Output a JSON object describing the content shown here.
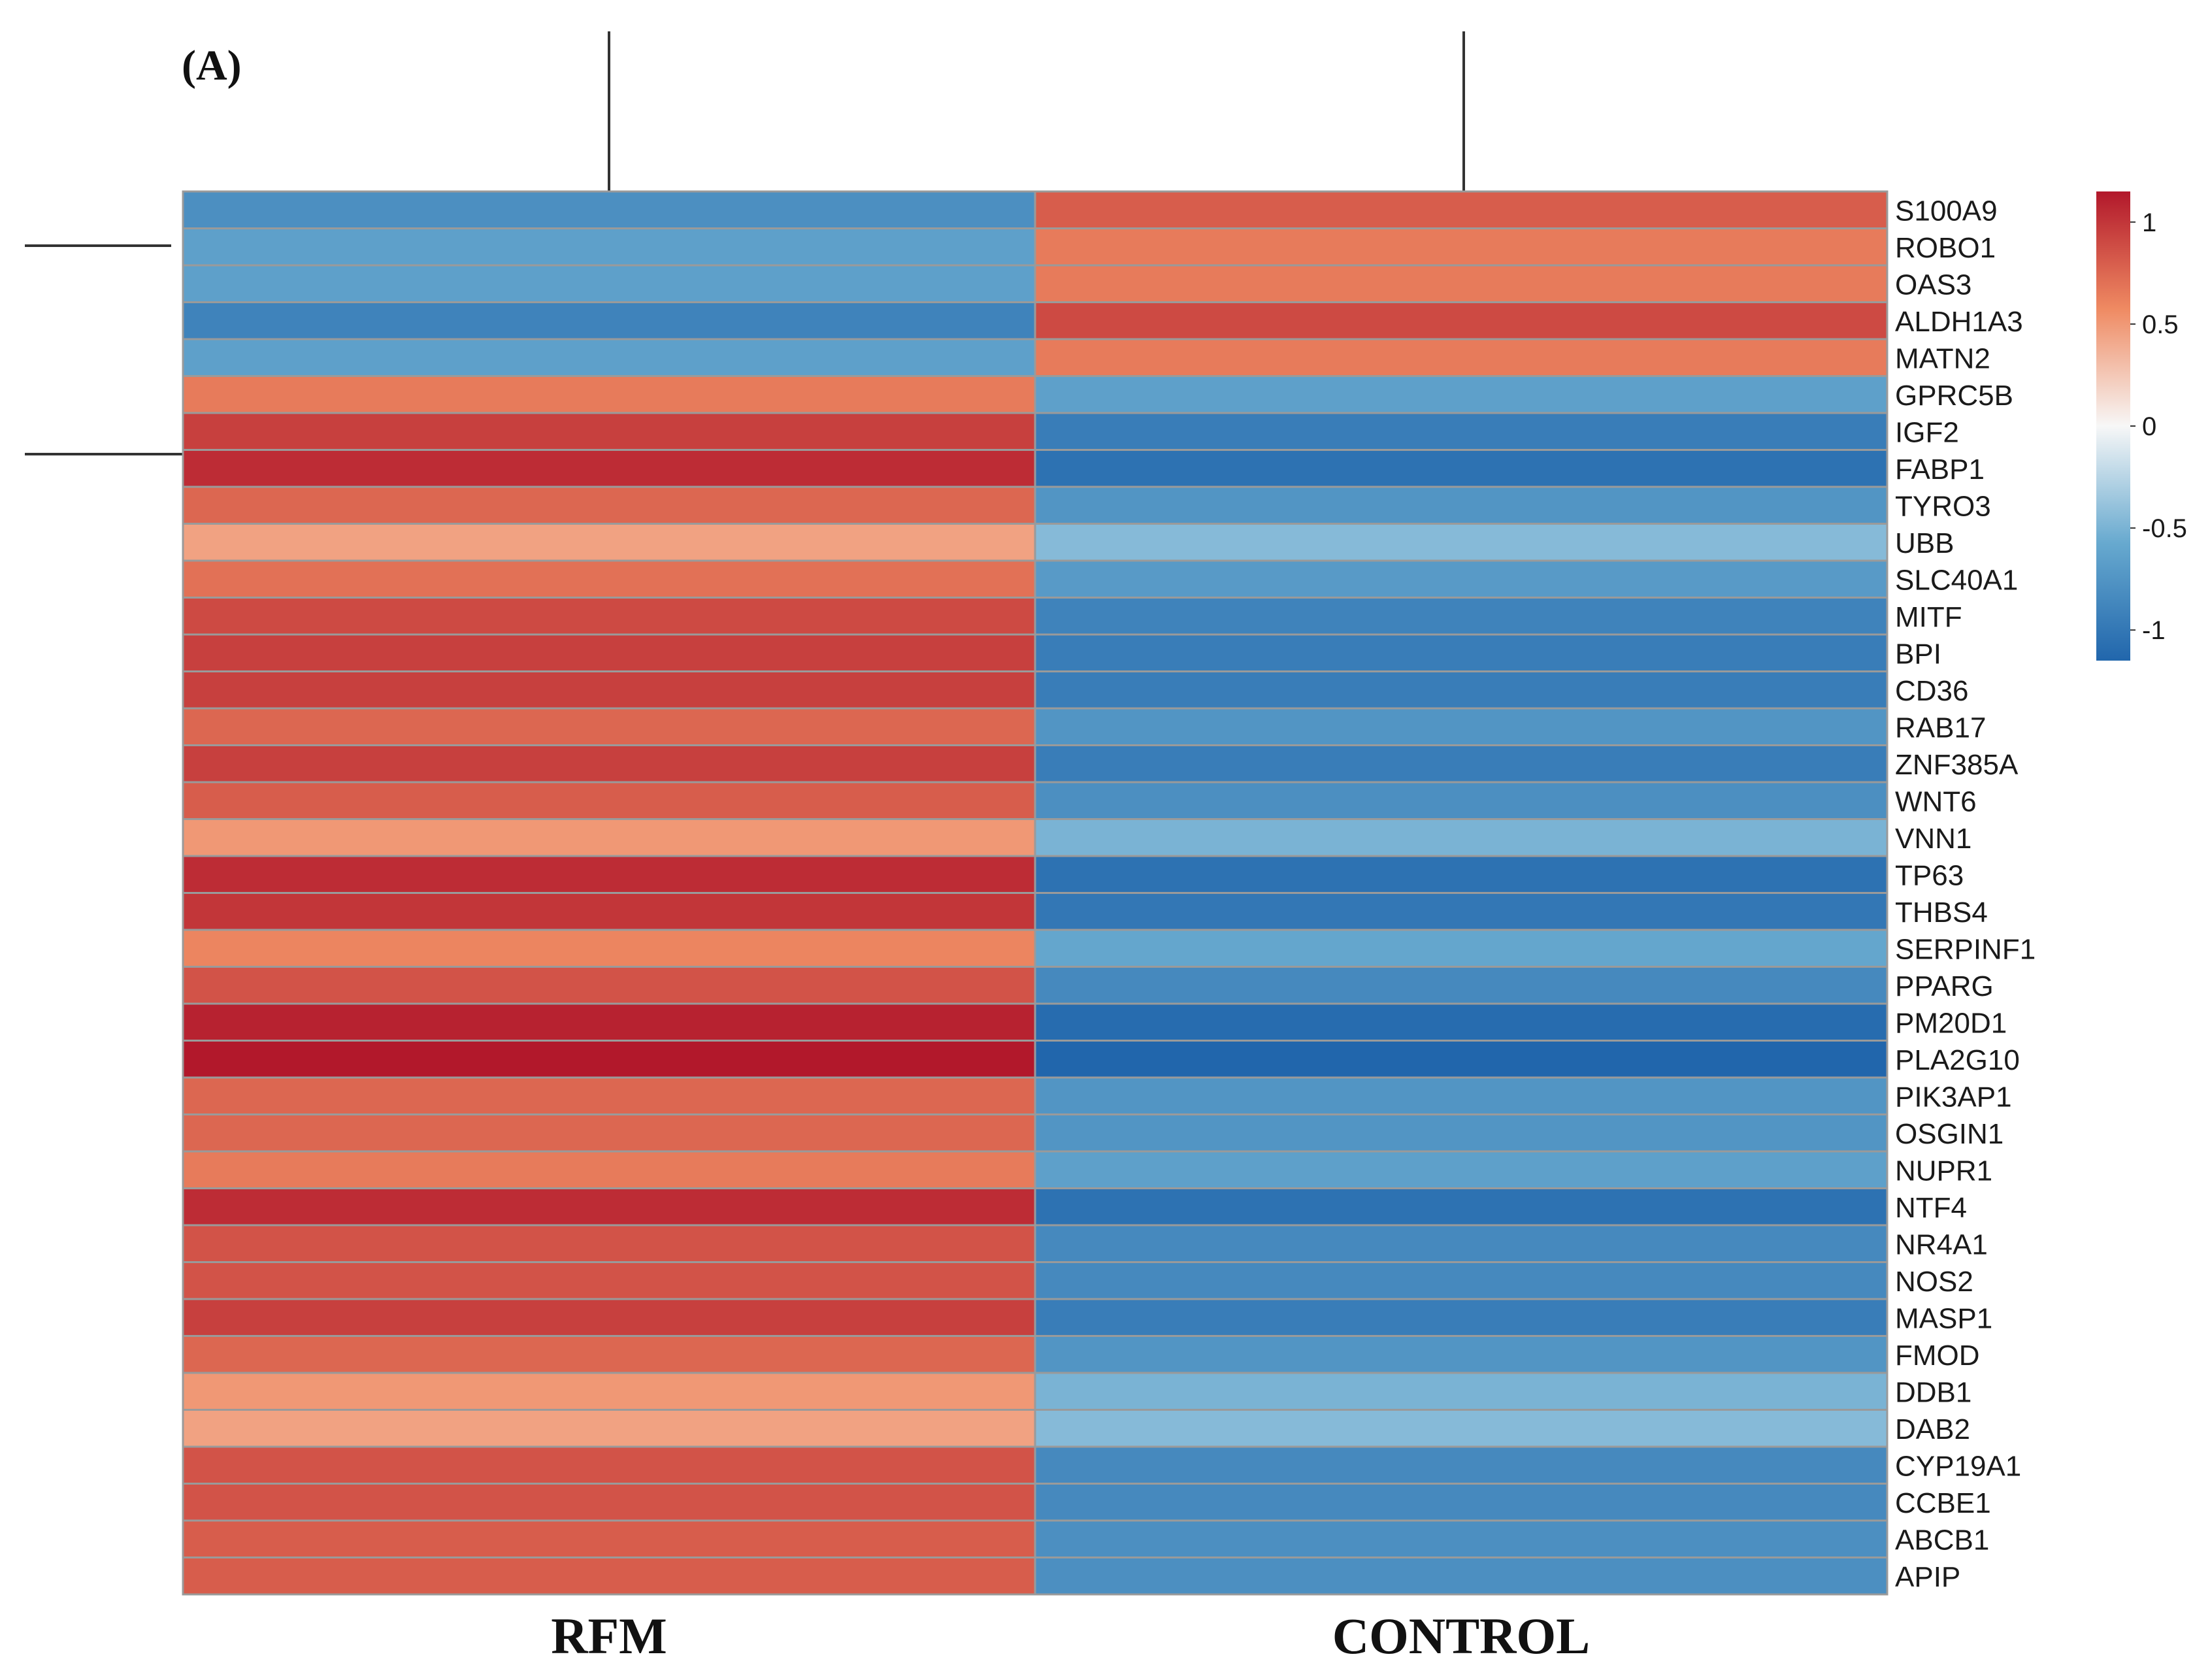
{
  "panel_label": "(A)",
  "chart_data": {
    "type": "heatmap",
    "title": "",
    "columns": [
      "RFM",
      "CONTROL"
    ],
    "rows": [
      "S100A9",
      "ROBO1",
      "OAS3",
      "ALDH1A3",
      "MATN2",
      "GPRC5B",
      "IGF2",
      "FABP1",
      "TYRO3",
      "UBB",
      "SLC40A1",
      "MITF",
      "BPI",
      "CD36",
      "RAB17",
      "ZNF385A",
      "WNT6",
      "VNN1",
      "TP63",
      "THBS4",
      "SERPINF1",
      "PPARG",
      "PM20D1",
      "PLA2G10",
      "PIK3AP1",
      "OSGIN1",
      "NUPR1",
      "NTF4",
      "NR4A1",
      "NOS2",
      "MASP1",
      "FMOD",
      "DDB1",
      "DAB2",
      "CYP19A1",
      "CCBE1",
      "ABCB1",
      "APIP"
    ],
    "values": [
      [
        -0.8,
        0.8
      ],
      [
        -0.65,
        0.65
      ],
      [
        -0.65,
        0.65
      ],
      [
        -0.9,
        0.9
      ],
      [
        -0.65,
        0.65
      ],
      [
        0.65,
        -0.65
      ],
      [
        0.95,
        -0.95
      ],
      [
        1.05,
        -1.05
      ],
      [
        0.75,
        -0.75
      ],
      [
        0.45,
        -0.45
      ],
      [
        0.7,
        -0.7
      ],
      [
        0.9,
        -0.9
      ],
      [
        0.95,
        -0.95
      ],
      [
        0.95,
        -0.95
      ],
      [
        0.75,
        -0.75
      ],
      [
        0.95,
        -0.95
      ],
      [
        0.8,
        -0.8
      ],
      [
        0.5,
        -0.5
      ],
      [
        1.05,
        -1.05
      ],
      [
        1.0,
        -1.0
      ],
      [
        0.6,
        -0.6
      ],
      [
        0.85,
        -0.85
      ],
      [
        1.1,
        -1.1
      ],
      [
        1.15,
        -1.15
      ],
      [
        0.75,
        -0.75
      ],
      [
        0.75,
        -0.75
      ],
      [
        0.65,
        -0.65
      ],
      [
        1.05,
        -1.05
      ],
      [
        0.85,
        -0.85
      ],
      [
        0.85,
        -0.85
      ],
      [
        0.95,
        -0.95
      ],
      [
        0.75,
        -0.75
      ],
      [
        0.5,
        -0.5
      ],
      [
        0.45,
        -0.45
      ],
      [
        0.85,
        -0.85
      ],
      [
        0.85,
        -0.85
      ],
      [
        0.8,
        -0.8
      ],
      [
        0.8,
        -0.8
      ]
    ],
    "color_range": [
      -1.15,
      1.15
    ],
    "legend": {
      "ticks": [
        1,
        0.5,
        0,
        -0.5,
        -1
      ],
      "tick_labels": [
        "1",
        "0.5",
        "0",
        "-0.5",
        "-1"
      ],
      "position": "top-right"
    },
    "colors": {
      "high": "#b2182b",
      "mid_high": "#ef8a62",
      "mid": "#f7f7f7",
      "mid_low": "#67a9cf",
      "low": "#2166ac"
    },
    "dendrogram": {
      "columns": true,
      "rows": "partial"
    }
  }
}
